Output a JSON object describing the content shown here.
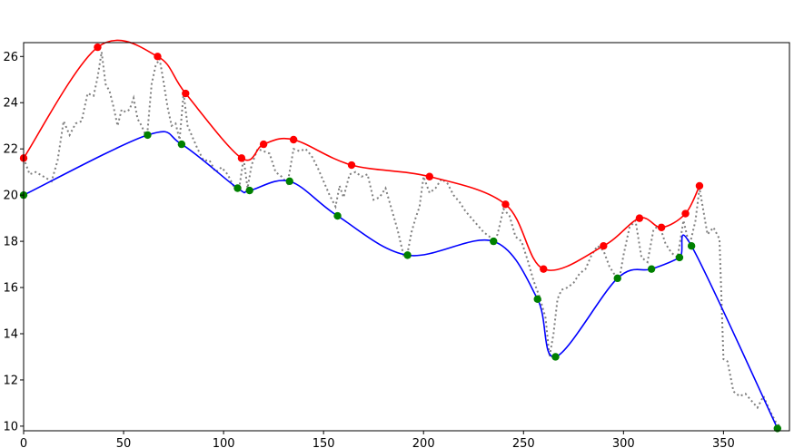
{
  "chart_data": {
    "type": "line",
    "title": "",
    "xlabel": "",
    "ylabel": "",
    "xlim": [
      0,
      383
    ],
    "ylim": [
      9.8,
      26.6
    ],
    "x_ticks": [
      "0",
      "50",
      "100",
      "150",
      "200",
      "250",
      "300",
      "350"
    ],
    "y_ticks": [
      "10",
      "12",
      "14",
      "16",
      "18",
      "20",
      "22",
      "24",
      "26"
    ],
    "grid": false,
    "legend": "none",
    "series": [
      {
        "style": "dotted",
        "color": "#808080",
        "x": [
          0,
          3,
          6,
          10,
          14,
          17,
          20,
          23,
          26,
          29,
          32,
          35,
          37,
          39,
          41,
          43,
          45,
          47,
          49,
          51,
          53,
          55,
          57,
          59,
          61,
          62,
          64,
          66,
          68,
          70,
          72,
          74,
          76,
          78,
          80,
          82,
          84,
          87,
          90,
          93,
          96,
          99,
          102,
          105,
          108,
          110,
          112,
          114,
          117,
          120,
          123,
          126,
          129,
          132,
          135,
          138,
          141,
          144,
          147,
          150,
          153,
          156,
          158,
          160,
          163,
          166,
          169,
          172,
          175,
          178,
          181,
          184,
          187,
          190,
          192,
          194,
          196,
          198,
          200,
          203,
          206,
          209,
          212,
          215,
          218,
          221,
          224,
          227,
          230,
          233,
          235,
          237,
          240,
          243,
          246,
          249,
          252,
          255,
          258,
          261,
          263,
          265,
          267,
          269,
          272,
          275,
          278,
          281,
          284,
          287,
          290,
          293,
          296,
          298,
          300,
          303,
          306,
          309,
          312,
          315,
          318,
          321,
          324,
          327,
          330,
          333,
          336,
          338,
          340,
          342,
          345,
          348,
          350,
          352,
          355,
          358,
          361,
          364,
          367,
          370,
          373,
          376,
          378
        ],
        "values": [
          21.6,
          20.9,
          21.0,
          20.8,
          20.6,
          21.5,
          23.2,
          22.6,
          23.1,
          23.2,
          24.4,
          24.3,
          25.1,
          26.2,
          24.8,
          24.5,
          23.8,
          23.0,
          23.7,
          23.6,
          23.7,
          24.2,
          23.3,
          23.0,
          22.6,
          22.8,
          24.8,
          25.6,
          25.9,
          24.9,
          23.8,
          23.0,
          23.1,
          22.4,
          24.4,
          23.0,
          22.6,
          22.0,
          21.5,
          21.5,
          21.0,
          21.2,
          20.9,
          20.4,
          20.4,
          21.6,
          20.3,
          21.3,
          22.0,
          21.9,
          21.8,
          21.0,
          20.8,
          20.5,
          22.0,
          21.9,
          22.0,
          21.7,
          21.2,
          20.6,
          20.0,
          19.5,
          20.4,
          19.9,
          20.9,
          21.0,
          20.8,
          20.9,
          19.8,
          19.9,
          20.3,
          19.4,
          18.5,
          17.4,
          17.5,
          18.4,
          19.0,
          19.5,
          20.8,
          20.1,
          20.3,
          20.7,
          20.5,
          20.0,
          19.7,
          19.3,
          19.0,
          18.7,
          18.4,
          18.2,
          18.0,
          18.3,
          19.4,
          19.1,
          18.2,
          18.0,
          17.2,
          16.3,
          15.6,
          14.7,
          13.0,
          14.0,
          15.5,
          15.9,
          16.0,
          16.2,
          16.6,
          16.8,
          17.4,
          17.8,
          17.6,
          16.9,
          16.5,
          16.4,
          17.4,
          18.6,
          18.9,
          17.3,
          17.1,
          18.5,
          18.7,
          17.9,
          17.5,
          17.3,
          18.9,
          17.8,
          18.9,
          20.3,
          19.3,
          18.3,
          18.6,
          18.1,
          12.9,
          12.8,
          11.5,
          11.3,
          11.4,
          11.1,
          10.8,
          11.3,
          10.7,
          10.2,
          10.0
        ]
      },
      {
        "style": "solid",
        "color": "#ff0000",
        "x": [
          0,
          37,
          67,
          81,
          109,
          120,
          135,
          164,
          203,
          241,
          260,
          290,
          308,
          319,
          331,
          338
        ],
        "values": [
          21.6,
          26.4,
          26.0,
          24.4,
          21.6,
          22.2,
          22.4,
          21.3,
          20.8,
          19.6,
          16.8,
          17.8,
          19.0,
          18.6,
          19.2,
          20.4
        ]
      },
      {
        "style": "solid",
        "color": "#0000ff",
        "x": [
          0,
          62,
          79,
          107,
          113,
          133,
          157,
          192,
          235,
          257,
          266,
          297,
          314,
          328,
          334,
          377
        ],
        "values": [
          20.0,
          22.6,
          22.2,
          20.3,
          20.2,
          20.6,
          19.1,
          17.4,
          18.0,
          15.5,
          13.0,
          16.4,
          16.8,
          17.3,
          17.8,
          9.9
        ]
      }
    ],
    "markers": [
      {
        "color": "#ff0000",
        "x": [
          0,
          37,
          67,
          81,
          109,
          120,
          135,
          164,
          203,
          241,
          260,
          290,
          308,
          319,
          331,
          338
        ],
        "values": [
          21.6,
          26.4,
          26.0,
          24.4,
          21.6,
          22.2,
          22.4,
          21.3,
          20.8,
          19.6,
          16.8,
          17.8,
          19.0,
          18.6,
          19.2,
          20.4
        ]
      },
      {
        "color": "#008000",
        "x": [
          0,
          62,
          79,
          107,
          113,
          133,
          157,
          192,
          235,
          257,
          266,
          297,
          314,
          328,
          334,
          377
        ],
        "values": [
          20.0,
          22.6,
          22.2,
          20.3,
          20.2,
          20.6,
          19.1,
          17.4,
          18.0,
          15.5,
          13.0,
          16.4,
          16.8,
          17.3,
          17.8,
          9.9
        ]
      }
    ]
  }
}
